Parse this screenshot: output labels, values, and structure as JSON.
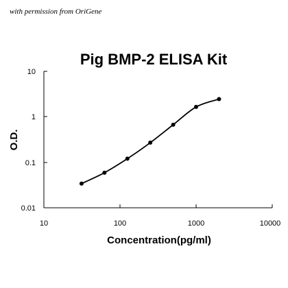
{
  "credit_text": "with permission from OriGene",
  "chart_data": {
    "type": "line",
    "title": "Pig BMP-2 ELISA Kit",
    "xlabel": "Concentration(pg/ml)",
    "ylabel": "O.D.",
    "xscale": "log",
    "yscale": "log",
    "xlim": [
      10,
      10000
    ],
    "ylim": [
      0.01,
      10
    ],
    "xticks": [
      10,
      100,
      1000,
      10000
    ],
    "xtick_labels": [
      "10",
      "100",
      "1000",
      "10000"
    ],
    "yticks": [
      0.01,
      0.1,
      1,
      10
    ],
    "ytick_labels": [
      "0.01",
      "0.1",
      "1",
      "10"
    ],
    "grid": false,
    "legend": "none",
    "series": [
      {
        "x": [
          31.25,
          62.5,
          125,
          250,
          500,
          1000,
          2000
        ],
        "y": [
          0.034,
          0.059,
          0.12,
          0.27,
          0.67,
          1.65,
          2.45
        ]
      }
    ],
    "colors": {
      "line": "#000000",
      "marker": "#000000",
      "axis": "#000000",
      "background": "#ffffff"
    }
  }
}
